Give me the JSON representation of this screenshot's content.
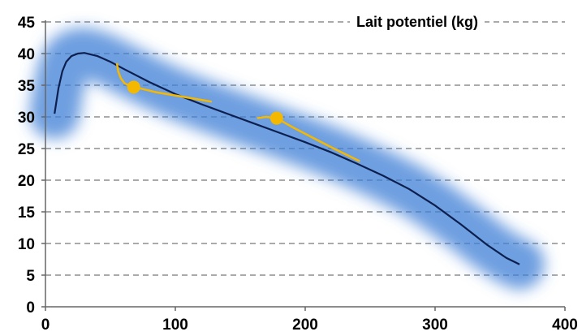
{
  "chart_data": {
    "type": "line",
    "title": "Lait potentiel (kg)",
    "xlabel": "",
    "ylabel": "",
    "xlim": [
      0,
      400
    ],
    "ylim": [
      0,
      45
    ],
    "x_ticks": [
      0,
      100,
      200,
      300,
      400
    ],
    "y_ticks": [
      0,
      5,
      10,
      15,
      20,
      25,
      30,
      35,
      40,
      45
    ],
    "grid": "horizontal dashed",
    "colors": {
      "curve": "#0d1f4f",
      "band": "#3f7fd6",
      "highlight": "#f5b800"
    },
    "series": [
      {
        "role": "potential-milk-curve",
        "x": [
          7,
          10,
          13,
          16,
          20,
          25,
          30,
          40,
          50,
          60,
          80,
          100,
          120,
          140,
          160,
          180,
          200,
          220,
          240,
          260,
          280,
          300,
          320,
          340,
          355,
          365
        ],
        "y": [
          30.5,
          34.5,
          37.2,
          38.7,
          39.6,
          40.0,
          40.1,
          39.6,
          38.7,
          37.6,
          35.5,
          33.6,
          32.0,
          30.5,
          29.0,
          27.5,
          26.0,
          24.4,
          22.6,
          20.7,
          18.6,
          16.0,
          13.0,
          9.8,
          7.7,
          6.7
        ]
      },
      {
        "role": "highlighted-cow-1",
        "path_x": [
          55,
          56,
          58,
          61,
          65,
          69,
          85,
          105,
          128
        ],
        "path_y": [
          38.5,
          37.2,
          36.1,
          35.3,
          34.9,
          34.7,
          33.9,
          33.2,
          32.4
        ],
        "point": [
          68,
          34.7
        ]
      },
      {
        "role": "highlighted-cow-2",
        "path_x": [
          163,
          170,
          178,
          190,
          205,
          222,
          242
        ],
        "path_y": [
          29.8,
          30.0,
          29.8,
          28.4,
          26.8,
          25.0,
          23.0
        ],
        "point": [
          178,
          29.8
        ]
      }
    ]
  }
}
